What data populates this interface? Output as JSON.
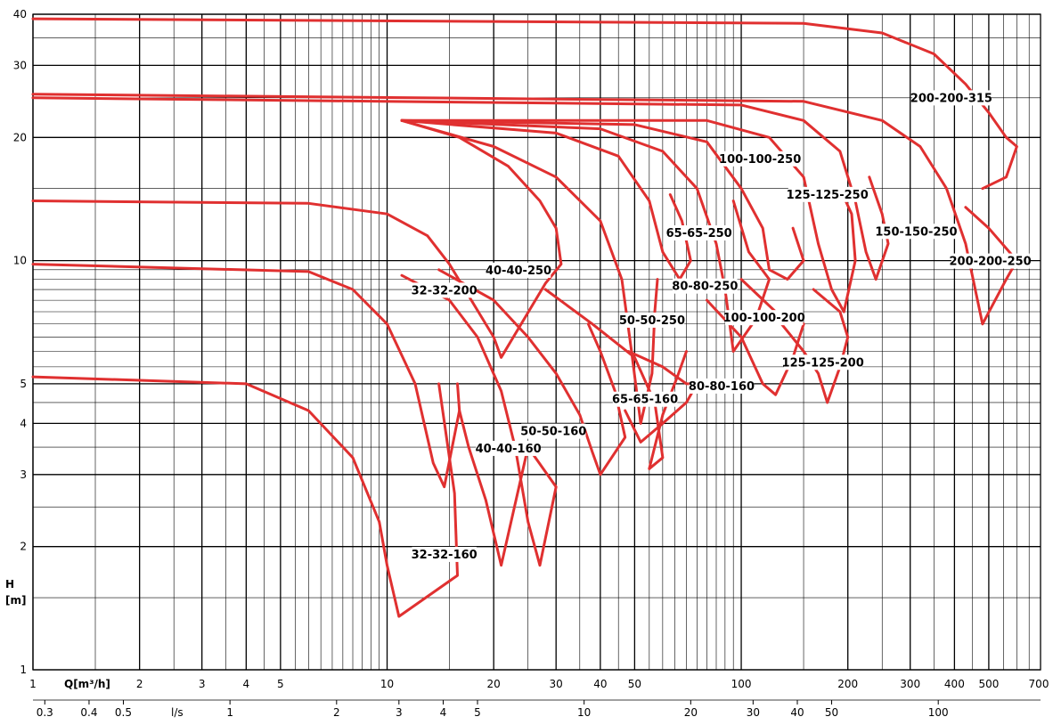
{
  "colors": {
    "curve": "#e03030",
    "grid": "#000000",
    "background": "#ffffff"
  },
  "chart_data": {
    "type": "line",
    "title": "",
    "x_scale": "log",
    "y_scale": "log",
    "xlim": [
      1,
      700
    ],
    "ylim": [
      1,
      40
    ],
    "grid": true,
    "ylabel_line1": "H",
    "ylabel_line2": "[m]",
    "xlabel_q": "Q[m³/h]",
    "xlabel_ls": "l/s",
    "x_ticks_q": [
      "1",
      "2",
      "3",
      "4",
      "5",
      "10",
      "20",
      "30",
      "40",
      "50",
      "100",
      "200",
      "300",
      "400",
      "500",
      "700"
    ],
    "x_ticks_ls": [
      "0.3",
      "0.4",
      "0.5",
      "1",
      "2",
      "3",
      "4",
      "5",
      "10",
      "20",
      "30",
      "40",
      "50",
      "100"
    ],
    "y_ticks": [
      "1",
      "2",
      "3",
      "4",
      "5",
      "10",
      "20",
      "30",
      "40"
    ],
    "series": [
      {
        "name": "32-32-160",
        "label": "32-32-160",
        "points": [
          [
            1,
            5.2
          ],
          [
            4,
            5
          ],
          [
            6,
            4.3
          ],
          [
            8,
            3.3
          ],
          [
            9.5,
            2.3
          ],
          [
            10,
            1.8
          ],
          [
            10.8,
            1.35
          ],
          [
            15.8,
            1.7
          ],
          [
            15.5,
            2.7
          ],
          [
            14,
            5
          ]
        ]
      },
      {
        "name": "32-32-200",
        "label": "32-32-200",
        "points": [
          [
            1,
            9.8
          ],
          [
            6,
            9.4
          ],
          [
            8,
            8.5
          ],
          [
            10,
            7
          ],
          [
            12,
            5
          ],
          [
            13.5,
            3.2
          ],
          [
            14.5,
            2.8
          ],
          [
            16,
            4.3
          ],
          [
            15.8,
            5
          ]
        ]
      },
      {
        "name": "40-40-160",
        "label": "40-40-160",
        "points": [
          [
            11,
            9.2
          ],
          [
            15,
            8
          ],
          [
            18,
            6.5
          ],
          [
            21,
            4.8
          ],
          [
            23,
            3.5
          ],
          [
            25,
            2.3
          ],
          [
            27,
            1.8
          ],
          [
            30,
            2.8
          ],
          [
            25,
            3.5
          ],
          [
            21,
            1.8
          ],
          [
            19,
            2.6
          ],
          [
            17,
            3.5
          ],
          [
            16,
            4.3
          ]
        ]
      },
      {
        "name": "40-40-250",
        "label": "40-40-250",
        "points": [
          [
            1,
            14
          ],
          [
            6,
            13.8
          ],
          [
            10,
            13
          ],
          [
            13,
            11.5
          ],
          [
            15,
            9.8
          ],
          [
            20,
            6.5
          ],
          [
            21,
            5.8
          ],
          [
            28,
            8.8
          ],
          [
            31,
            9.8
          ],
          [
            30,
            12
          ],
          [
            27,
            14
          ],
          [
            22,
            17
          ],
          [
            16,
            20
          ],
          [
            11,
            22
          ]
        ]
      },
      {
        "name": "50-50-160",
        "label": "50-50-160",
        "points": [
          [
            14,
            9.5
          ],
          [
            20,
            8
          ],
          [
            25,
            6.5
          ],
          [
            30,
            5.3
          ],
          [
            35,
            4.2
          ],
          [
            38,
            3.4
          ],
          [
            40,
            3
          ],
          [
            47,
            3.7
          ],
          [
            44,
            4.8
          ],
          [
            40,
            6
          ],
          [
            37,
            7
          ]
        ]
      },
      {
        "name": "50-50-250",
        "label": "50-50-250",
        "points": [
          [
            11,
            22
          ],
          [
            20,
            19
          ],
          [
            30,
            16
          ],
          [
            40,
            12.5
          ],
          [
            46,
            9
          ],
          [
            49,
            6
          ],
          [
            52,
            4
          ],
          [
            56,
            5.3
          ],
          [
            57,
            7.5
          ],
          [
            58,
            9
          ]
        ]
      },
      {
        "name": "65-65-160",
        "label": "65-65-160",
        "points": [
          [
            28,
            8.5
          ],
          [
            38,
            7
          ],
          [
            50,
            5.8
          ],
          [
            57,
            4.5
          ],
          [
            60,
            3.3
          ],
          [
            55,
            3.1
          ],
          [
            60,
            4.2
          ],
          [
            66,
            5.2
          ],
          [
            70,
            6
          ]
        ]
      },
      {
        "name": "65-65-250",
        "label": "65-65-250",
        "points": [
          [
            11,
            22
          ],
          [
            30,
            20.5
          ],
          [
            45,
            18
          ],
          [
            55,
            14
          ],
          [
            60,
            10.5
          ],
          [
            67,
            9
          ],
          [
            72,
            10
          ],
          [
            68,
            12.5
          ],
          [
            63,
            14.5
          ]
        ]
      },
      {
        "name": "80-80-160",
        "label": "80-80-160",
        "points": [
          [
            48,
            6
          ],
          [
            60,
            5.5
          ],
          [
            70,
            5
          ],
          [
            75,
            5
          ],
          [
            70,
            4.5
          ],
          [
            60,
            4
          ],
          [
            52,
            3.6
          ],
          [
            47,
            4.3
          ]
        ]
      },
      {
        "name": "80-80-250",
        "label": "80-80-250",
        "points": [
          [
            11,
            22
          ],
          [
            40,
            21
          ],
          [
            60,
            18.5
          ],
          [
            75,
            15
          ],
          [
            85,
            11
          ],
          [
            90,
            8.5
          ],
          [
            95,
            6
          ],
          [
            110,
            7.2
          ],
          [
            120,
            9
          ],
          [
            105,
            10.5
          ],
          [
            95,
            14
          ]
        ]
      },
      {
        "name": "100-100-200",
        "label": "100-100-200",
        "points": [
          [
            80,
            8
          ],
          [
            100,
            6.5
          ],
          [
            115,
            5
          ],
          [
            125,
            4.7
          ],
          [
            140,
            5.8
          ],
          [
            150,
            7
          ],
          [
            125,
            7.5
          ],
          [
            100,
            9
          ]
        ]
      },
      {
        "name": "100-100-250",
        "label": "100-100-250",
        "points": [
          [
            11,
            22
          ],
          [
            50,
            21.5
          ],
          [
            80,
            19.5
          ],
          [
            100,
            15
          ],
          [
            115,
            12
          ],
          [
            120,
            9.5
          ],
          [
            135,
            9
          ],
          [
            150,
            10
          ],
          [
            140,
            12
          ]
        ]
      },
      {
        "name": "125-125-200",
        "label": "125-125-200",
        "points": [
          [
            130,
            7
          ],
          [
            150,
            6
          ],
          [
            165,
            5.3
          ],
          [
            175,
            4.5
          ],
          [
            190,
            5.5
          ],
          [
            200,
            6.5
          ],
          [
            190,
            7.5
          ],
          [
            160,
            8.5
          ]
        ]
      },
      {
        "name": "125-125-250",
        "label": "125-125-250",
        "points": [
          [
            11,
            22
          ],
          [
            80,
            22
          ],
          [
            120,
            20
          ],
          [
            150,
            16
          ],
          [
            165,
            11
          ],
          [
            180,
            8.5
          ],
          [
            195,
            7.5
          ],
          [
            210,
            10
          ],
          [
            205,
            13
          ],
          [
            190,
            15
          ]
        ]
      },
      {
        "name": "150-150-250",
        "label": "150-150-250",
        "points": [
          [
            1,
            25
          ],
          [
            100,
            24
          ],
          [
            150,
            22
          ],
          [
            190,
            18.5
          ],
          [
            210,
            14
          ],
          [
            225,
            10.5
          ],
          [
            240,
            9
          ],
          [
            260,
            11
          ],
          [
            250,
            13
          ],
          [
            230,
            16
          ]
        ]
      },
      {
        "name": "200-200-250",
        "label": "200-200-250",
        "points": [
          [
            1,
            25.5
          ],
          [
            150,
            24.5
          ],
          [
            250,
            22
          ],
          [
            320,
            19
          ],
          [
            380,
            15
          ],
          [
            430,
            11
          ],
          [
            480,
            7
          ],
          [
            560,
            9
          ],
          [
            600,
            10
          ],
          [
            500,
            12
          ],
          [
            430,
            13.5
          ]
        ]
      },
      {
        "name": "200-200-315",
        "label": "200-200-315",
        "points": [
          [
            1,
            39
          ],
          [
            150,
            38
          ],
          [
            250,
            36
          ],
          [
            350,
            32
          ],
          [
            430,
            27
          ],
          [
            500,
            23
          ],
          [
            560,
            20
          ],
          [
            600,
            19
          ],
          [
            560,
            16
          ],
          [
            480,
            15
          ]
        ]
      }
    ]
  }
}
